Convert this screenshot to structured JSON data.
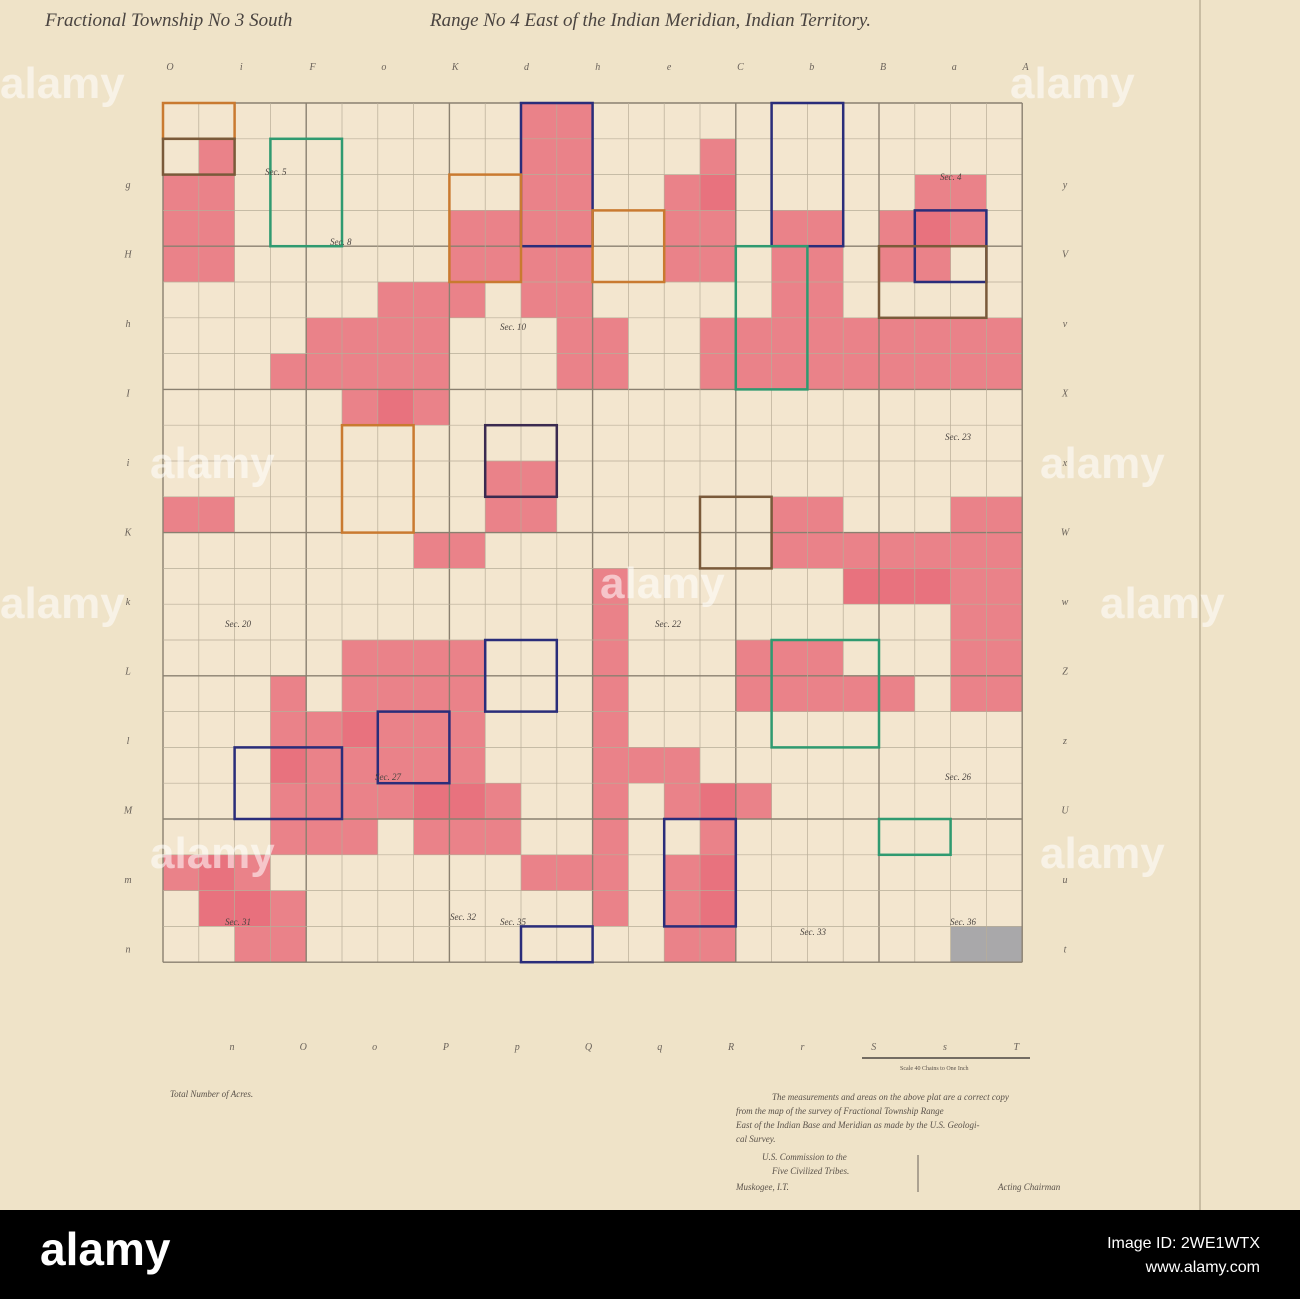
{
  "header": {
    "title_left": "Fractional Township No 3 South",
    "title_right": "Range No 4 East of the Indian Meridian, Indian Territory."
  },
  "map": {
    "top_letters": [
      "O",
      "i",
      "F",
      "o",
      "K",
      "d",
      "h",
      "e",
      "C",
      "b",
      "B",
      "a",
      "A"
    ],
    "left_letters": [
      "g",
      "H",
      "h",
      "I",
      "i",
      "K",
      "k",
      "L",
      "l",
      "M",
      "m",
      "n"
    ],
    "right_letters": [
      "y",
      "V",
      "v",
      "X",
      "x",
      "W",
      "w",
      "Z",
      "z",
      "U",
      "u",
      "t"
    ],
    "bottom_letters": [
      "n",
      "O",
      "o",
      "P",
      "p",
      "Q",
      "q",
      "R",
      "r",
      "S",
      "s",
      "T"
    ],
    "section_labels": [
      "Sec. 5",
      "Sec. 4",
      "Sec. 8",
      "Sec. 10",
      "Sec. 20",
      "Sec. 22",
      "Sec. 23",
      "Sec. 26",
      "Sec. 27",
      "Sec. 31",
      "Sec. 32",
      "Sec. 33",
      "Sec. 35",
      "Sec. 36"
    ],
    "scale_caption": "Scale 40 Chains to One Inch"
  },
  "footer": {
    "acres": "Total Number of Acres.",
    "certificate": [
      "The measurements and areas on the above plat are a correct copy",
      "from the map of the survey of Fractional Township          Range",
      "East of the Indian Base and Meridian as made by the U.S. Geologi-",
      "cal Survey."
    ],
    "commission": [
      "U.S. Commission to the",
      "Five Civilized Tribes.",
      "Muskogee, I.T."
    ],
    "signature": "Acting Chairman"
  },
  "watermark": {
    "text": "alamy",
    "image_id": "Image ID: 2WE1WTX",
    "site": "www.alamy.com"
  }
}
